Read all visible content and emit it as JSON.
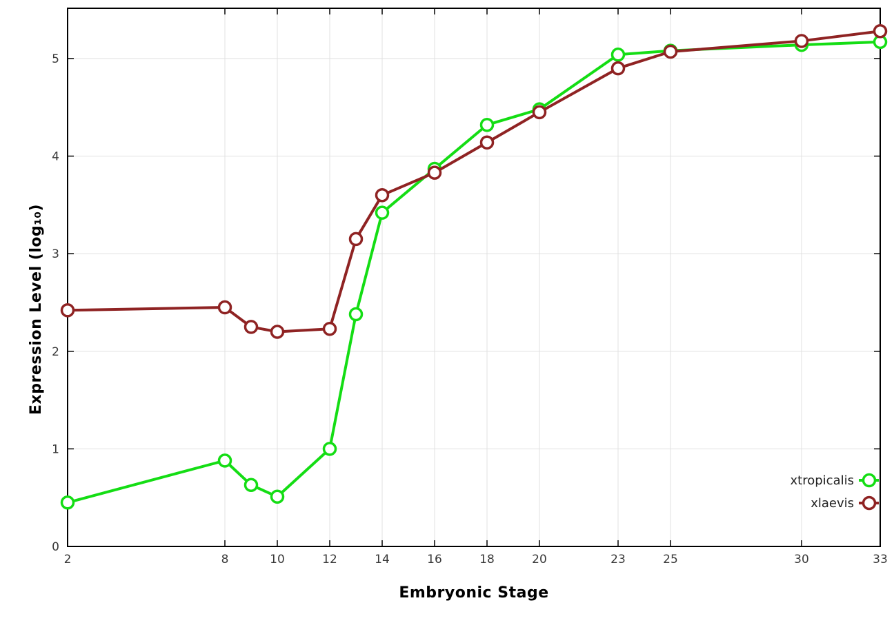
{
  "chart_data": {
    "type": "line",
    "title": "",
    "xlabel": "Embryonic Stage",
    "ylabel": "Expression Level (log₁₀)",
    "x": [
      2,
      8,
      9,
      10,
      12,
      13,
      14,
      16,
      18,
      20,
      23,
      25,
      30,
      33
    ],
    "series": [
      {
        "name": "xtropicalis",
        "color": "#14dd14",
        "values": [
          0.45,
          0.88,
          0.63,
          0.51,
          1.0,
          2.38,
          3.42,
          3.87,
          4.32,
          4.48,
          5.04,
          5.08,
          5.14,
          5.17
        ]
      },
      {
        "name": "xlaevis",
        "color": "#8f2323",
        "values": [
          2.42,
          2.45,
          2.25,
          2.2,
          2.23,
          3.15,
          3.6,
          3.83,
          4.14,
          4.45,
          4.9,
          5.07,
          5.18,
          5.28
        ]
      }
    ],
    "xticks": [
      2,
      8,
      10,
      12,
      14,
      16,
      18,
      20,
      23,
      25,
      30,
      33
    ],
    "yticks": [
      0,
      1,
      2,
      3,
      4,
      5
    ],
    "xlim": [
      2,
      33
    ],
    "ylim": [
      0,
      5.515
    ],
    "grid": true,
    "legend_position": "bottom-right",
    "colors": {
      "grid": "#e0e0e0",
      "border": "#000000",
      "tick_label": "#383838",
      "legend_text": "#202020",
      "marker_fill": "#ffffff"
    }
  }
}
